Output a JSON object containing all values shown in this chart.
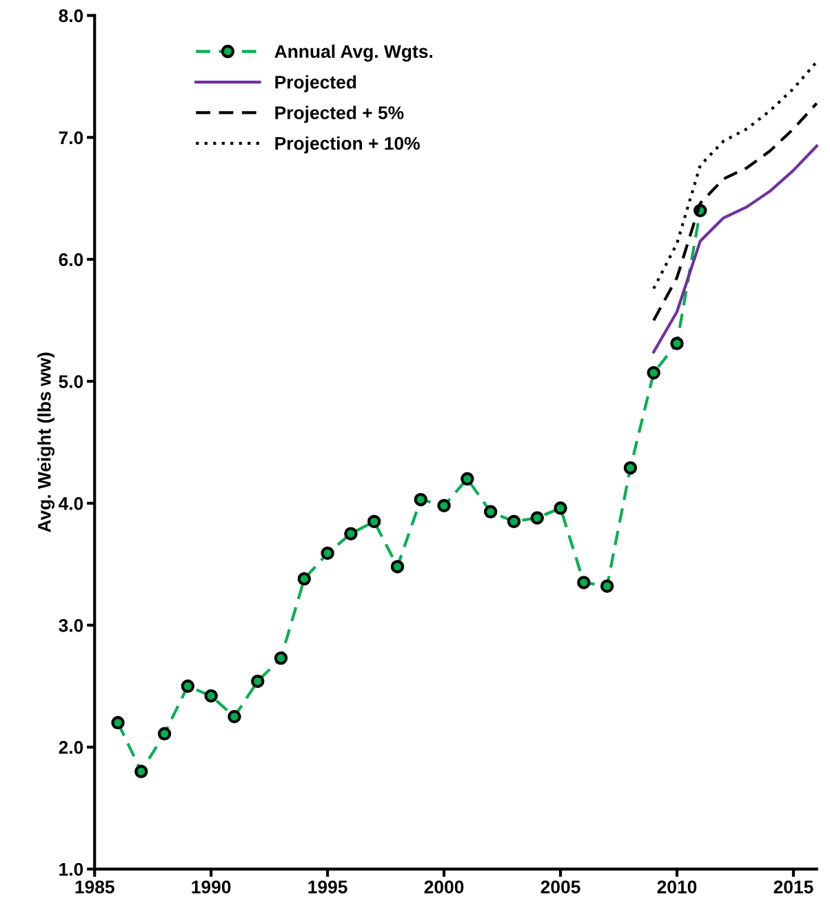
{
  "chart_data": {
    "type": "line",
    "ylabel": "Avg. Weight (lbs ww)",
    "xlim": [
      1985,
      2016
    ],
    "xticks": [
      1985,
      1990,
      1995,
      2000,
      2005,
      2010,
      2015
    ],
    "ylim": [
      1.0,
      8.0
    ],
    "yticks": [
      {
        "value": 1.0,
        "label": "1.0"
      },
      {
        "value": 2.0,
        "label": "2.0"
      },
      {
        "value": 3.0,
        "label": "3.0"
      },
      {
        "value": 4.0,
        "label": "4.0"
      },
      {
        "value": 5.0,
        "label": "5.0"
      },
      {
        "value": 6.0,
        "label": "6.0"
      },
      {
        "value": 7.0,
        "label": "7.0"
      },
      {
        "value": 8.0,
        "label": "8.0"
      }
    ],
    "grid": false,
    "legend": "top left",
    "series": [
      {
        "name": "Annual Avg. Wgts.",
        "color": "#00b050",
        "marker": "circle",
        "line_style": "dashed",
        "x": [
          1986,
          1987,
          1988,
          1989,
          1990,
          1991,
          1992,
          1993,
          1994,
          1995,
          1996,
          1997,
          1998,
          1999,
          2000,
          2001,
          2002,
          2003,
          2004,
          2005,
          2006,
          2007,
          2008,
          2009,
          2010,
          2011
        ],
        "values": [
          2.2,
          1.8,
          2.11,
          2.5,
          2.42,
          2.25,
          2.54,
          2.73,
          3.38,
          3.59,
          3.75,
          3.85,
          3.48,
          4.03,
          3.98,
          4.2,
          3.93,
          3.85,
          3.88,
          3.96,
          3.35,
          3.32,
          4.29,
          5.07,
          5.31,
          6.4
        ]
      },
      {
        "name": "Projected",
        "color": "#7030a0",
        "marker": "none",
        "line_style": "solid",
        "x": [
          2009,
          2010,
          2011,
          2012,
          2013,
          2014,
          2015,
          2016
        ],
        "values": [
          5.24,
          5.57,
          6.15,
          6.34,
          6.43,
          6.56,
          6.73,
          6.93
        ]
      },
      {
        "name": "Projected + 5%",
        "color": "#000000",
        "marker": "none",
        "line_style": "dashed",
        "x": [
          2009,
          2010,
          2011,
          2012,
          2013,
          2014,
          2015,
          2016
        ],
        "values": [
          5.5,
          5.85,
          6.46,
          6.66,
          6.75,
          6.89,
          7.07,
          7.28
        ]
      },
      {
        "name": "Projection + 10%",
        "color": "#000000",
        "marker": "none",
        "line_style": "dotted",
        "x": [
          2009,
          2010,
          2011,
          2012,
          2013,
          2014,
          2015,
          2016
        ],
        "values": [
          5.76,
          6.13,
          6.77,
          6.97,
          7.07,
          7.22,
          7.4,
          7.62
        ]
      }
    ]
  }
}
